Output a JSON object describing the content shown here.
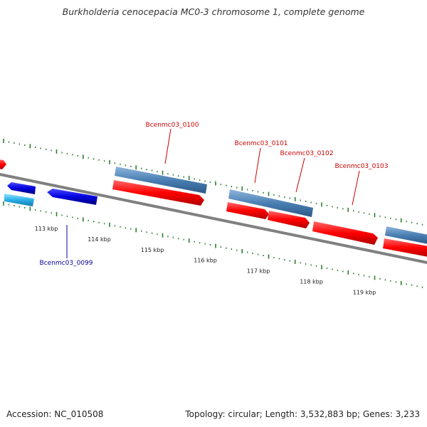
{
  "title": "Burkholderia cenocepacia MC0-3 chromosome 1, complete genome",
  "footer": {
    "accession": "Accession: NC_010508",
    "summary": "Topology: circular; Length: 3,532,883 bp; Genes: 3,233"
  },
  "colors": {
    "backbone": "#808080",
    "tick": "#2e7d32",
    "cds_forward": "#ff0000",
    "cds_reverse": "#0000e0",
    "gene_forward": "#4a7fb3",
    "gene_reverse": "#2ab0e8",
    "label_forward": "#cc0000",
    "label_reverse": "#000099"
  },
  "axis": {
    "tick_labels": [
      "113 kbp",
      "114 kbp",
      "115 kbp",
      "116 kbp",
      "117 kbp",
      "118 kbp",
      "119 kbp"
    ]
  },
  "genes": [
    {
      "label": "Bcenmc03_0099",
      "strand": "reverse"
    },
    {
      "label": "Bcenmc03_0100",
      "strand": "forward"
    },
    {
      "label": "Bcenmc03_0101",
      "strand": "forward"
    },
    {
      "label": "Bcenmc03_0102",
      "strand": "forward"
    },
    {
      "label": "Bcenmc03_0103",
      "strand": "forward"
    }
  ]
}
